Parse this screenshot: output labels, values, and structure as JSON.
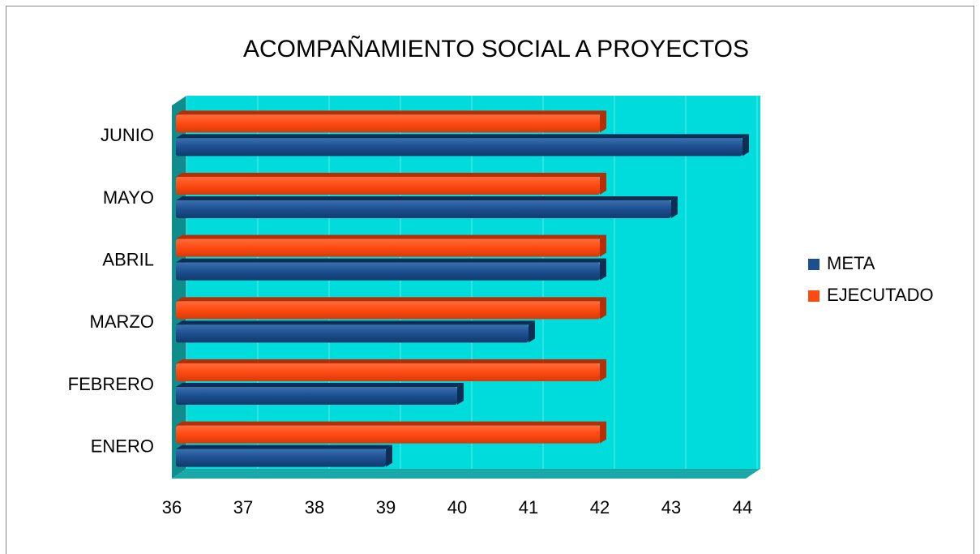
{
  "chart_data": {
    "type": "bar",
    "orientation": "horizontal",
    "title": "ACOMPAÑAMIENTO SOCIAL A PROYECTOS",
    "categories": [
      "ENERO",
      "FEBRERO",
      "MARZO",
      "ABRIL",
      "MAYO",
      "JUNIO"
    ],
    "series": [
      {
        "name": "META",
        "color": "#1c4f8f",
        "values": [
          39,
          40,
          41,
          42,
          43,
          44
        ]
      },
      {
        "name": "EJECUTADO",
        "color": "#ff4a12",
        "values": [
          42,
          42,
          42,
          42,
          42,
          42
        ]
      }
    ],
    "xlim": [
      36,
      44
    ],
    "xticks": [
      36,
      37,
      38,
      39,
      40,
      41,
      42,
      43,
      44
    ],
    "grid": true,
    "legend": "right"
  }
}
